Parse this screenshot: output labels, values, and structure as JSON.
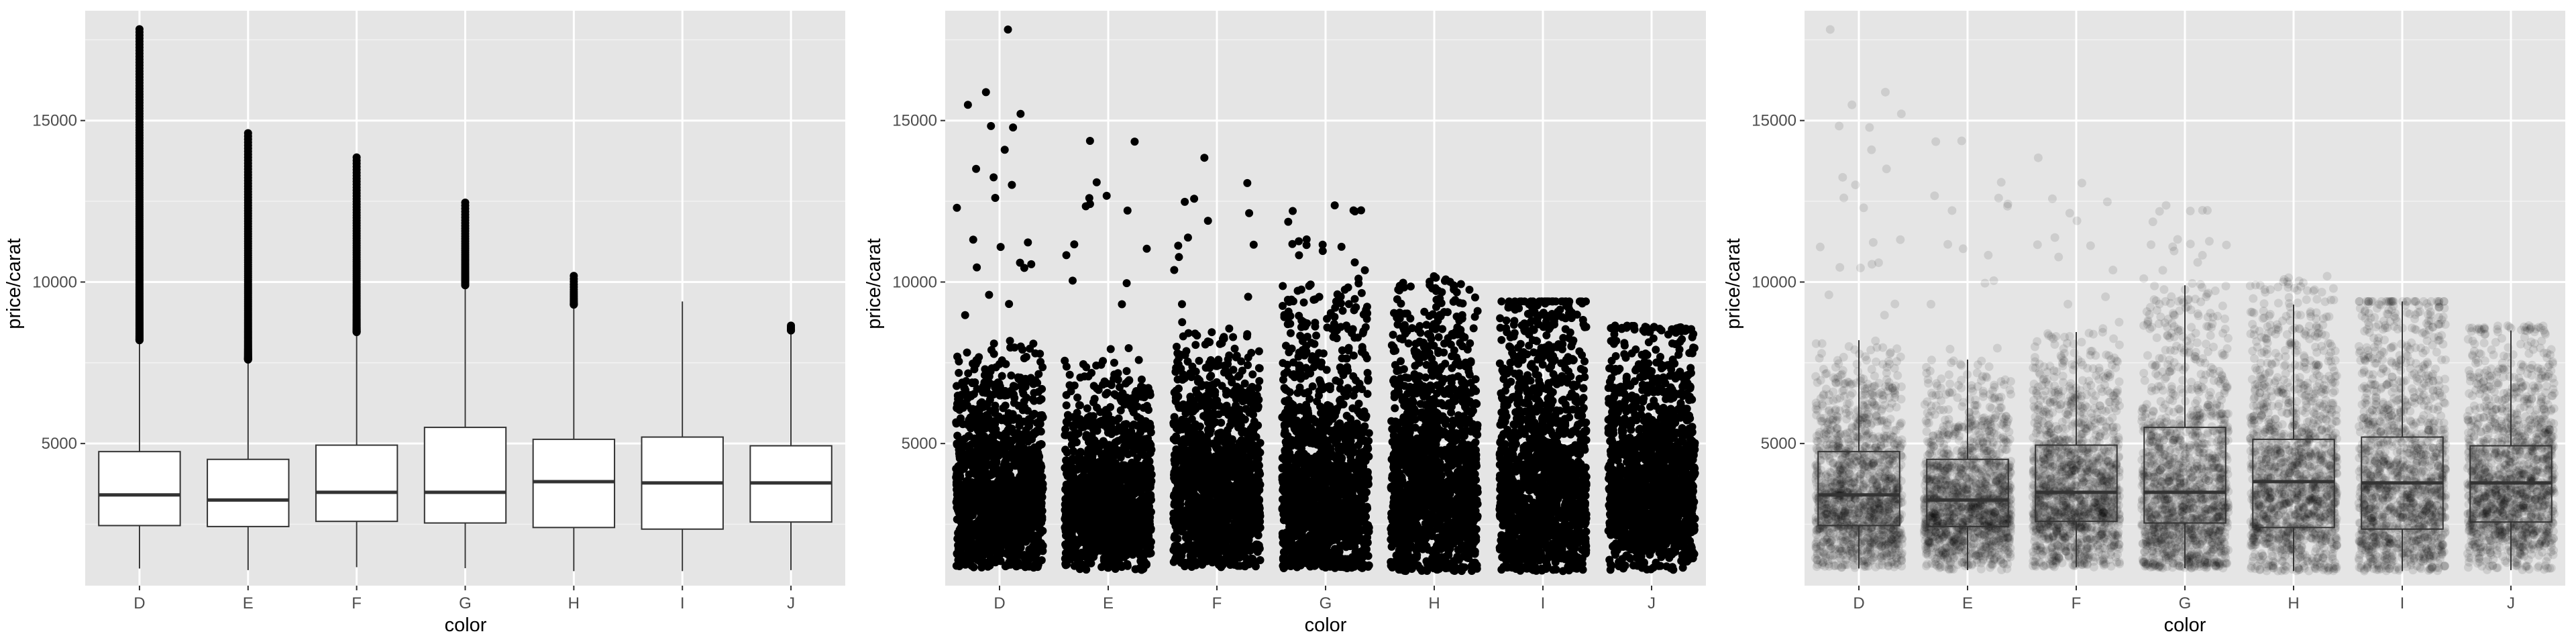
{
  "colors": {
    "panel_background": "#e5e5e5",
    "grid_major": "#ffffff",
    "grid_minor": "#f2f2f2",
    "points": "#000000",
    "box_fill": "#ffffff",
    "box_line": "#333333"
  },
  "chart_data": [
    {
      "type": "box",
      "title": "",
      "xlabel": "color",
      "ylabel": "price/carat",
      "categories": [
        "D",
        "E",
        "F",
        "G",
        "H",
        "I",
        "J"
      ],
      "ylim": [
        600,
        18400
      ],
      "yticks": [
        5000,
        10000,
        15000
      ],
      "grid": true,
      "boxes": [
        {
          "category": "D",
          "min": 1130,
          "q1": 2460,
          "median": 3410,
          "q3": 4750,
          "whisker_high": 8200,
          "max_outlier": 17830
        },
        {
          "category": "E",
          "min": 1080,
          "q1": 2430,
          "median": 3250,
          "q3": 4510,
          "whisker_high": 7600,
          "max_outlier": 14610
        },
        {
          "category": "F",
          "min": 1170,
          "q1": 2590,
          "median": 3490,
          "q3": 4950,
          "whisker_high": 8450,
          "max_outlier": 13860
        },
        {
          "category": "G",
          "min": 1140,
          "q1": 2540,
          "median": 3490,
          "q3": 5500,
          "whisker_high": 9900,
          "max_outlier": 12460
        },
        {
          "category": "H",
          "min": 1050,
          "q1": 2400,
          "median": 3820,
          "q3": 5130,
          "whisker_high": 9300,
          "max_outlier": 10190
        },
        {
          "category": "I",
          "min": 1050,
          "q1": 2350,
          "median": 3780,
          "q3": 5200,
          "whisker_high": 9400,
          "max_outlier": 9400
        },
        {
          "category": "J",
          "min": 1080,
          "q1": 2570,
          "median": 3780,
          "q3": 4930,
          "whisker_high": 8500,
          "max_outlier": 8650
        }
      ]
    },
    {
      "type": "scatter",
      "subtype": "jitter",
      "title": "",
      "xlabel": "color",
      "ylabel": "price/carat",
      "categories": [
        "D",
        "E",
        "F",
        "G",
        "H",
        "I",
        "J"
      ],
      "ylim": [
        600,
        18400
      ],
      "yticks": [
        5000,
        10000,
        15000
      ],
      "grid": true,
      "point_alpha": 1.0
    },
    {
      "type": "scatter",
      "subtype": "jitter-with-box",
      "title": "",
      "xlabel": "color",
      "ylabel": "price/carat",
      "categories": [
        "D",
        "E",
        "F",
        "G",
        "H",
        "I",
        "J"
      ],
      "ylim": [
        600,
        18400
      ],
      "yticks": [
        5000,
        10000,
        15000
      ],
      "grid": true,
      "point_alpha": 0.1
    }
  ]
}
